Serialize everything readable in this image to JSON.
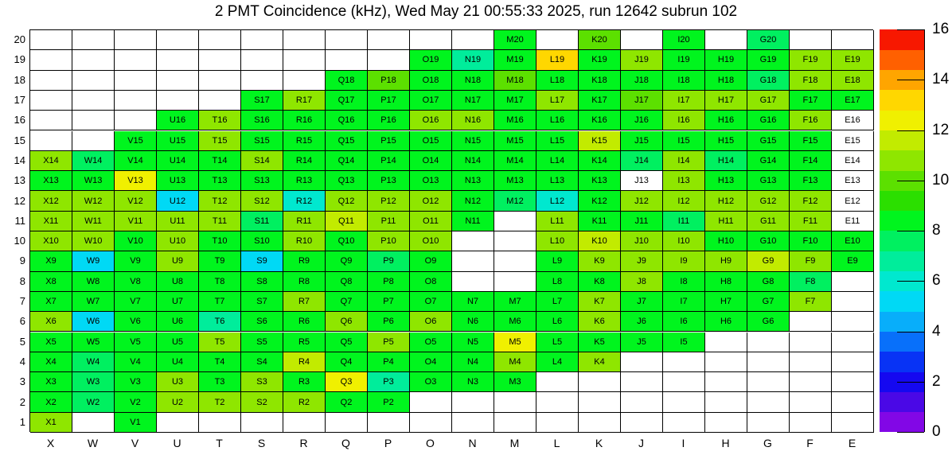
{
  "title": "2 PMT Coincidence (kHz), Wed May 21 00:55:33 2025, run 12642 subrun 102",
  "chart_data": {
    "type": "heatmap",
    "title": "2 PMT Coincidence (kHz), Wed May 21 00:55:33 2025, run 12642 subrun 102",
    "unit": "kHz",
    "columns": [
      "X",
      "W",
      "V",
      "U",
      "T",
      "S",
      "R",
      "Q",
      "P",
      "O",
      "N",
      "M",
      "L",
      "K",
      "J",
      "I",
      "H",
      "G",
      "F",
      "E"
    ],
    "rows": [
      20,
      19,
      18,
      17,
      16,
      15,
      14,
      13,
      12,
      11,
      10,
      9,
      8,
      7,
      6,
      5,
      4,
      3,
      2,
      1
    ],
    "zlim": [
      0,
      16
    ],
    "colorbar_ticks": [
      0,
      2,
      4,
      6,
      8,
      10,
      12,
      14,
      16
    ],
    "grid_on": true,
    "legend_position": "right-colorbar",
    "cell_label_format": "columnLetter+rowNumber",
    "empty_cell_code": null,
    "white_labeled_cell_code": "W",
    "palette_low_to_high": [
      "#8207e6",
      "#4a08e6",
      "#1508f0",
      "#0833f5",
      "#0870fa",
      "#08aefa",
      "#00d9f5",
      "#00e8cf",
      "#00ed9b",
      "#00f060",
      "#00f51e",
      "#2bdf00",
      "#5ce000",
      "#8fe600",
      "#c2eb00",
      "#f0f000",
      "#ffd700",
      "#ffa500",
      "#ff6000",
      "#f71800"
    ],
    "band_size": 0.8,
    "values": {
      "20": [
        null,
        null,
        null,
        null,
        null,
        null,
        null,
        null,
        null,
        null,
        null,
        8.4,
        null,
        10.0,
        null,
        8.4,
        null,
        7.6,
        null,
        null
      ],
      "19": [
        null,
        null,
        null,
        null,
        null,
        null,
        null,
        null,
        null,
        8.4,
        6.8,
        8.4,
        13.2,
        8.4,
        10.8,
        8.4,
        8.4,
        8.4,
        10.8,
        10.8
      ],
      "18": [
        null,
        null,
        null,
        null,
        null,
        null,
        null,
        8.4,
        10.0,
        8.4,
        8.4,
        10.0,
        8.4,
        8.4,
        8.4,
        8.4,
        8.4,
        7.6,
        10.8,
        10.8
      ],
      "17": [
        null,
        null,
        null,
        null,
        null,
        8.4,
        10.8,
        8.4,
        8.4,
        8.4,
        8.4,
        8.4,
        10.8,
        8.4,
        10.0,
        10.8,
        10.8,
        10.8,
        8.4,
        8.4
      ],
      "16": [
        null,
        null,
        null,
        8.4,
        10.8,
        8.4,
        8.4,
        8.4,
        8.4,
        10.8,
        10.8,
        8.4,
        8.4,
        8.4,
        8.4,
        10.8,
        8.4,
        8.4,
        10.8,
        "W"
      ],
      "15": [
        null,
        null,
        8.4,
        8.4,
        10.8,
        8.4,
        8.4,
        8.4,
        8.4,
        8.4,
        8.4,
        8.4,
        8.4,
        11.6,
        8.4,
        8.4,
        8.4,
        8.4,
        8.4,
        "W"
      ],
      "14": [
        10.8,
        7.6,
        8.4,
        8.4,
        8.4,
        10.8,
        8.4,
        8.4,
        8.4,
        8.4,
        8.4,
        8.4,
        8.4,
        8.4,
        7.6,
        10.8,
        7.6,
        8.4,
        8.4,
        "W"
      ],
      "13": [
        8.4,
        8.4,
        12.4,
        8.4,
        8.4,
        8.4,
        8.4,
        8.4,
        8.4,
        8.4,
        8.4,
        8.4,
        8.4,
        8.4,
        "W",
        10.8,
        8.4,
        8.4,
        8.4,
        "W"
      ],
      "12": [
        10.8,
        10.8,
        10.8,
        5.2,
        10.8,
        10.8,
        6.0,
        10.8,
        10.8,
        10.8,
        8.4,
        7.6,
        6.0,
        8.4,
        10.8,
        10.8,
        10.8,
        10.8,
        10.8,
        "W"
      ],
      "11": [
        10.8,
        10.8,
        10.8,
        10.8,
        10.8,
        7.6,
        10.8,
        11.6,
        10.8,
        10.8,
        8.4,
        null,
        10.8,
        8.4,
        8.4,
        7.6,
        10.8,
        10.8,
        10.8,
        "W"
      ],
      "10": [
        10.8,
        10.8,
        8.4,
        10.8,
        8.4,
        8.4,
        10.8,
        8.4,
        10.8,
        10.8,
        null,
        null,
        10.8,
        11.6,
        10.8,
        10.8,
        8.4,
        8.4,
        8.4,
        8.4
      ],
      "9": [
        8.4,
        5.2,
        8.4,
        10.8,
        8.4,
        5.2,
        8.4,
        8.4,
        7.6,
        8.4,
        null,
        null,
        8.4,
        10.8,
        10.8,
        10.8,
        10.8,
        11.6,
        10.8,
        8.4
      ],
      "8": [
        8.4,
        8.4,
        8.4,
        8.4,
        8.4,
        8.4,
        8.4,
        8.4,
        8.4,
        8.4,
        null,
        null,
        8.4,
        8.4,
        10.8,
        8.4,
        8.4,
        8.4,
        7.6,
        null
      ],
      "7": [
        8.4,
        8.4,
        8.4,
        8.4,
        8.4,
        8.4,
        10.8,
        8.4,
        8.4,
        8.4,
        8.4,
        8.4,
        8.4,
        10.8,
        8.4,
        8.4,
        8.4,
        8.4,
        10.8,
        null
      ],
      "6": [
        10.8,
        5.2,
        8.4,
        8.4,
        6.8,
        8.4,
        8.4,
        10.8,
        8.4,
        10.8,
        8.4,
        8.4,
        8.4,
        10.8,
        8.4,
        8.4,
        8.4,
        8.4,
        null,
        null
      ],
      "5": [
        8.4,
        8.4,
        8.4,
        8.4,
        10.8,
        8.4,
        8.4,
        8.4,
        10.8,
        8.4,
        8.4,
        12.4,
        8.4,
        8.4,
        8.4,
        8.4,
        null,
        null,
        null,
        null
      ],
      "4": [
        8.4,
        7.6,
        8.4,
        8.4,
        8.4,
        8.4,
        11.6,
        8.4,
        8.4,
        8.4,
        8.4,
        10.8,
        8.4,
        10.8,
        null,
        null,
        null,
        null,
        null,
        null
      ],
      "3": [
        8.4,
        7.6,
        8.4,
        10.8,
        8.4,
        10.8,
        8.4,
        12.4,
        6.8,
        8.4,
        8.4,
        8.4,
        null,
        null,
        null,
        null,
        null,
        null,
        null,
        null
      ],
      "2": [
        8.4,
        7.6,
        8.4,
        10.8,
        10.8,
        10.8,
        10.8,
        8.4,
        8.4,
        null,
        null,
        null,
        null,
        null,
        null,
        null,
        null,
        null,
        null,
        null
      ],
      "1": [
        10.8,
        null,
        8.4,
        null,
        null,
        null,
        null,
        null,
        null,
        null,
        null,
        null,
        null,
        null,
        null,
        null,
        null,
        null,
        null,
        null
      ]
    }
  }
}
